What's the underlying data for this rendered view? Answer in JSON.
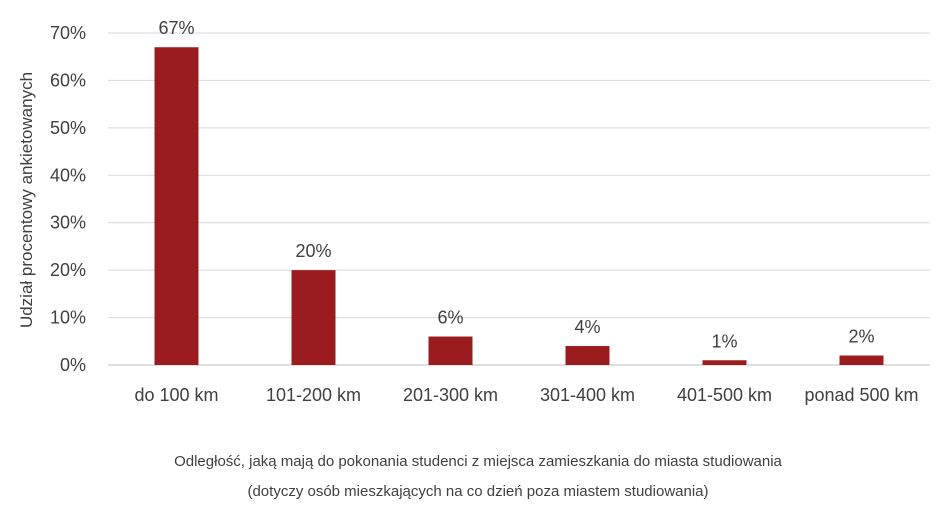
{
  "chart_data": {
    "type": "bar",
    "categories": [
      "do 100 km",
      "101-200 km",
      "201-300 km",
      "301-400 km",
      "401-500 km",
      "ponad 500 km"
    ],
    "values": [
      67,
      20,
      6,
      4,
      1,
      2
    ],
    "data_labels": [
      "67%",
      "20%",
      "6%",
      "4%",
      "1%",
      "2%"
    ],
    "ylabel": "Udział procentowy ankietowanych",
    "ylim": [
      0,
      70
    ],
    "yticks": [
      0,
      10,
      20,
      30,
      40,
      50,
      60,
      70
    ],
    "ytick_labels": [
      "0%",
      "10%",
      "20%",
      "30%",
      "40%",
      "50%",
      "60%",
      "70%"
    ],
    "grid": true,
    "legend": "none",
    "bar_color": "#9b1c1f",
    "caption_lines": [
      "Odległość, jaką mają do pokonania studenci z miejsca zamieszkania do miasta studiowania",
      "(dotyczy osób mieszkających na co dzień poza miastem studiowania)"
    ]
  }
}
